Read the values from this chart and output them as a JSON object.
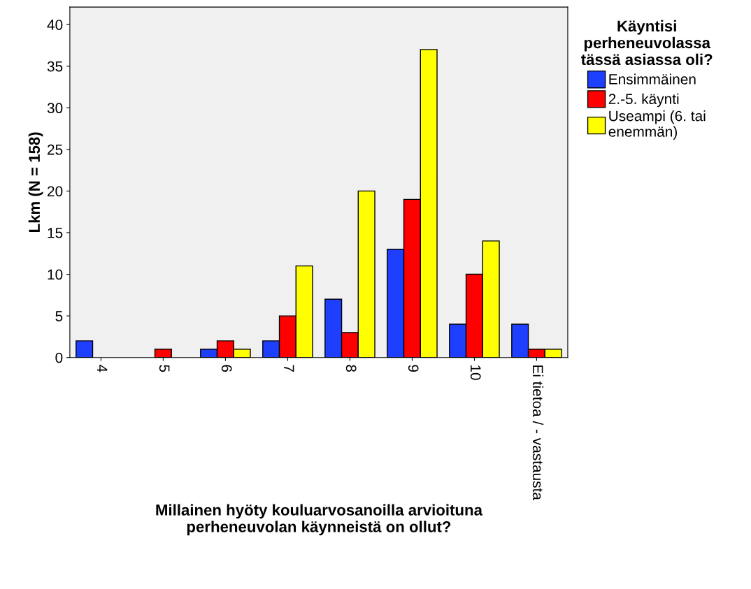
{
  "chart_data": {
    "type": "bar",
    "xlabel": "Millainen hyöty kouluarvosanoilla arvioituna\nperheneuvolan käynneistä on ollut?",
    "ylabel": "Lkm (N = 158)",
    "legend_title": "Käyntisi\nperheneuvolassa\ntässä asiassa oli?",
    "categories": [
      "4",
      "5",
      "6",
      "7",
      "8",
      "9",
      "10",
      "Ei tietoa / - vastausta"
    ],
    "series": [
      {
        "name": "Ensimmäinen",
        "color": "#1f3fff",
        "values": [
          2,
          null,
          1,
          2,
          7,
          13,
          4,
          4
        ]
      },
      {
        "name": "2.-5. käynti",
        "color": "#ff0000",
        "values": [
          null,
          1,
          2,
          5,
          3,
          19,
          10,
          1
        ]
      },
      {
        "name": "Useampi (6. tai\nenemmän)",
        "color": "#ffff00",
        "values": [
          null,
          null,
          1,
          11,
          20,
          37,
          14,
          1
        ]
      }
    ],
    "ylim": [
      0,
      42.1
    ],
    "yticks": [
      0,
      5,
      10,
      15,
      20,
      25,
      30,
      35,
      40
    ],
    "grid": false,
    "legend": "right"
  }
}
